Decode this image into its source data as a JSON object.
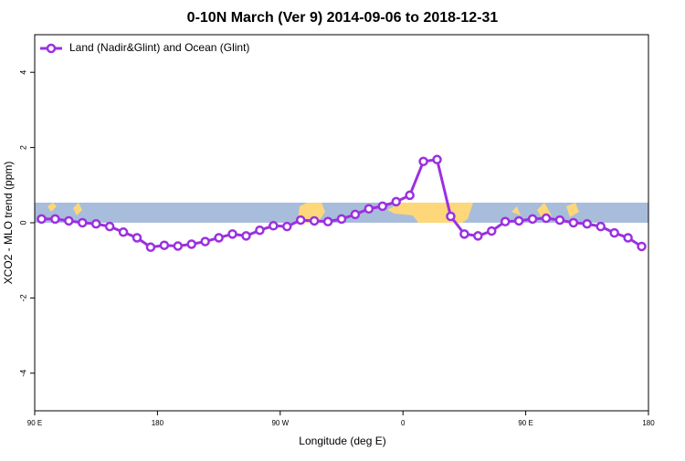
{
  "chart_data": {
    "type": "line",
    "title": "0-10N March (Ver 9)   2014-09-06 to 2018-12-31",
    "x_label": "Longitude (deg E)",
    "y_label": "XCO2 - MLO trend (ppm)",
    "x": [
      95,
      105,
      115,
      125,
      135,
      145,
      155,
      165,
      175,
      185,
      195,
      205,
      215,
      225,
      235,
      245,
      255,
      265,
      275,
      285,
      295,
      305,
      315,
      325,
      335,
      345,
      355,
      365,
      375,
      385,
      395,
      405,
      415,
      425,
      435,
      445,
      455,
      465,
      475,
      485,
      495,
      505,
      515,
      525,
      535
    ],
    "series": [
      {
        "name": "Land (Nadir&Glint) and Ocean (Glint)",
        "color": "#9b30e0",
        "values": [
          0.1,
          0.1,
          0.05,
          0,
          -0.03,
          -0.1,
          -0.25,
          -0.4,
          -0.65,
          -0.6,
          -0.62,
          -0.57,
          -0.5,
          -0.4,
          -0.3,
          -0.35,
          -0.2,
          -0.08,
          -0.1,
          0.07,
          0.05,
          0.03,
          0.1,
          0.22,
          0.37,
          0.44,
          0.56,
          0.73,
          1.63,
          1.68,
          0.17,
          -0.3,
          -0.35,
          -0.22,
          0.03,
          0.05,
          0.1,
          0.12,
          0.07,
          0,
          -0.03,
          -0.1,
          -0.27,
          -0.4,
          -0.63
        ]
      }
    ],
    "xlim": [
      90,
      540
    ],
    "xticks": [
      {
        "value": 90,
        "label": "90 E"
      },
      180,
      {
        "value": 270,
        "label": "90 W"
      },
      {
        "value": 360,
        "label": "0"
      },
      {
        "value": 450,
        "label": "90 E"
      },
      {
        "value": 540,
        "label": "180"
      }
    ],
    "ylim": [
      -5,
      5
    ],
    "yticks": [
      -4,
      -2,
      0,
      2,
      4
    ],
    "legend": "top-left"
  }
}
